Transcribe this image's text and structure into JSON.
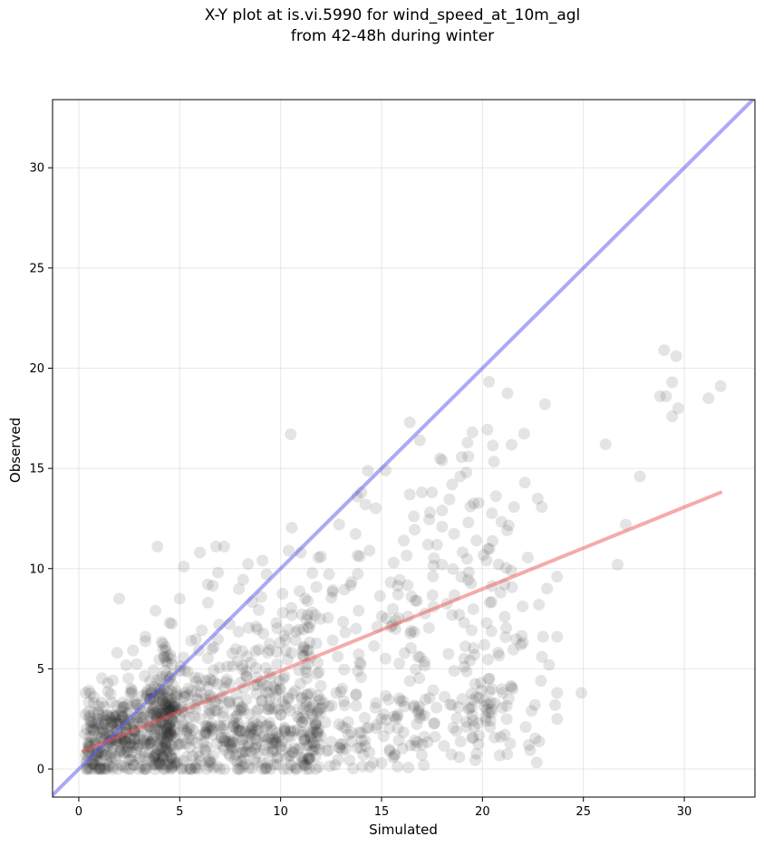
{
  "chart_data": {
    "type": "scatter",
    "title_lines": [
      "X-Y plot at is.vi.5990 for wind_speed_at_10m_agl",
      "from 42-48h during winter"
    ],
    "xlabel": "Simulated",
    "ylabel": "Observed",
    "xlim": [
      -1.3,
      33.5
    ],
    "ylim": [
      -1.4,
      33.4
    ],
    "xticks": [
      0,
      5,
      10,
      15,
      20,
      25,
      30
    ],
    "yticks": [
      0,
      5,
      10,
      15,
      20,
      25,
      30
    ],
    "grid": true,
    "point_color": "#222222",
    "point_opacity": 0.12,
    "identity_line": {
      "color": "#5555ee",
      "opacity": 0.5,
      "x": [
        -1.3,
        33.5
      ],
      "y": [
        -1.3,
        33.5
      ]
    },
    "fit_line": {
      "color": "#ee5555",
      "opacity": 0.5,
      "x": [
        0.2,
        31.8
      ],
      "y": [
        0.9,
        13.8
      ]
    },
    "points": [
      [
        29.0,
        20.9
      ],
      [
        29.6,
        20.6
      ],
      [
        29.4,
        19.3
      ],
      [
        31.8,
        19.1
      ],
      [
        31.2,
        18.5
      ],
      [
        29.7,
        18.0
      ],
      [
        29.4,
        17.6
      ],
      [
        28.8,
        18.6
      ],
      [
        29.1,
        18.6
      ],
      [
        23.1,
        18.2
      ],
      [
        26.1,
        16.2
      ],
      [
        27.8,
        14.6
      ],
      [
        27.1,
        12.2
      ],
      [
        26.7,
        10.2
      ],
      [
        24.9,
        3.8
      ],
      [
        23.7,
        9.6
      ],
      [
        23.2,
        9.0
      ],
      [
        22.8,
        8.2
      ],
      [
        23.0,
        6.6
      ],
      [
        23.7,
        6.6
      ],
      [
        23.3,
        5.2
      ],
      [
        22.9,
        4.4
      ],
      [
        22.6,
        3.2
      ],
      [
        23.6,
        3.2
      ],
      [
        23.7,
        2.5
      ],
      [
        22.3,
        1.2
      ],
      [
        23.7,
        3.8
      ],
      [
        22.0,
        6.3
      ],
      [
        21.9,
        6.2
      ],
      [
        21.5,
        4.0
      ],
      [
        21.2,
        2.5
      ],
      [
        20.9,
        1.6
      ],
      [
        21.0,
        3.8
      ],
      [
        21.3,
        3.5
      ],
      [
        10.5,
        16.7
      ],
      [
        16.4,
        17.3
      ],
      [
        16.9,
        16.4
      ],
      [
        19.5,
        16.8
      ],
      [
        15.2,
        14.9
      ],
      [
        17.9,
        15.5
      ],
      [
        18.0,
        15.4
      ],
      [
        19.3,
        15.6
      ],
      [
        19.2,
        14.8
      ],
      [
        18.9,
        14.6
      ],
      [
        18.5,
        14.2
      ],
      [
        17.5,
        13.8
      ],
      [
        17.0,
        13.8
      ],
      [
        16.4,
        13.7
      ],
      [
        13.8,
        13.6
      ],
      [
        14.0,
        13.8
      ],
      [
        14.2,
        13.2
      ],
      [
        19.4,
        13.1
      ],
      [
        18.0,
        12.9
      ],
      [
        17.4,
        12.8
      ],
      [
        12.9,
        12.2
      ],
      [
        19.3,
        12.3
      ],
      [
        19.7,
        11.4
      ],
      [
        3.9,
        11.1
      ],
      [
        6.8,
        11.1
      ],
      [
        7.2,
        11.1
      ],
      [
        10.4,
        10.9
      ],
      [
        5.2,
        10.1
      ],
      [
        6.0,
        10.8
      ],
      [
        6.9,
        9.8
      ],
      [
        2.0,
        8.5
      ],
      [
        3.8,
        7.9
      ],
      [
        1.9,
        5.8
      ],
      [
        3.3,
        6.6
      ],
      [
        5.0,
        8.5
      ],
      [
        4.5,
        7.3
      ],
      [
        6.4,
        8.3
      ],
      [
        18.0,
        10.2
      ],
      [
        17.3,
        11.2
      ],
      [
        16.1,
        11.4
      ],
      [
        20.2,
        10.4
      ],
      [
        15.6,
        10.3
      ],
      [
        14.4,
        10.9
      ],
      [
        12.0,
        10.6
      ],
      [
        11.0,
        10.8
      ],
      [
        9.1,
        10.4
      ],
      [
        21.1,
        7.6
      ],
      [
        20.9,
        8.8
      ],
      [
        20.1,
        6.2
      ],
      [
        19.6,
        5.7
      ],
      [
        19.1,
        5.1
      ],
      [
        18.6,
        4.9
      ],
      [
        18.7,
        1.9
      ],
      [
        20.1,
        3.4
      ],
      [
        20.3,
        4.5
      ],
      [
        17.0,
        0.7
      ],
      [
        15.4,
        0.9
      ],
      [
        14.1,
        0.7
      ],
      [
        15.0,
        0.3
      ],
      [
        12.7,
        0.2
      ],
      [
        11.9,
        0.1
      ]
    ]
  }
}
